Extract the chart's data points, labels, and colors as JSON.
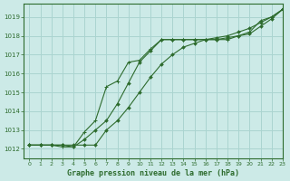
{
  "title": "Graphe pression niveau de la mer (hPa)",
  "bg_color": "#cceae7",
  "grid_color": "#aad4d0",
  "line_color": "#2d6b2d",
  "xlim": [
    -0.5,
    23
  ],
  "ylim": [
    1011.5,
    1019.7
  ],
  "yticks": [
    1012,
    1013,
    1014,
    1015,
    1016,
    1017,
    1018,
    1019
  ],
  "xticks": [
    0,
    1,
    2,
    3,
    4,
    5,
    6,
    7,
    8,
    9,
    10,
    11,
    12,
    13,
    14,
    15,
    16,
    17,
    18,
    19,
    20,
    21,
    22,
    23
  ],
  "series1_x": [
    0,
    1,
    2,
    3,
    4,
    5,
    6,
    7,
    8,
    9,
    10,
    11,
    12,
    13,
    14,
    15,
    16,
    17,
    18,
    19,
    20,
    21,
    22,
    23
  ],
  "series1_y": [
    1012.2,
    1012.2,
    1012.2,
    1012.2,
    1012.2,
    1012.2,
    1012.2,
    1013.0,
    1013.5,
    1014.2,
    1015.0,
    1015.8,
    1016.5,
    1017.0,
    1017.4,
    1017.6,
    1017.8,
    1017.9,
    1018.0,
    1018.2,
    1018.4,
    1018.7,
    1019.0,
    1019.4
  ],
  "series2_x": [
    0,
    1,
    2,
    3,
    4,
    5,
    6,
    7,
    8,
    9,
    10,
    11,
    12,
    13,
    14,
    15,
    16,
    17,
    18,
    19,
    20,
    21,
    22,
    23
  ],
  "series2_y": [
    1012.2,
    1012.2,
    1012.2,
    1012.2,
    1012.1,
    1012.5,
    1013.0,
    1013.5,
    1014.4,
    1015.5,
    1016.6,
    1017.2,
    1017.8,
    1017.8,
    1017.8,
    1017.8,
    1017.8,
    1017.8,
    1017.9,
    1018.0,
    1018.1,
    1018.5,
    1018.9,
    1019.4
  ],
  "series3_x": [
    0,
    1,
    2,
    3,
    4,
    5,
    6,
    7,
    8,
    9,
    10,
    11,
    12,
    13,
    14,
    15,
    16,
    17,
    18,
    19,
    20,
    21,
    22,
    23
  ],
  "series3_y": [
    1012.2,
    1012.2,
    1012.2,
    1012.1,
    1012.1,
    1012.9,
    1013.5,
    1015.3,
    1015.6,
    1016.6,
    1016.7,
    1017.3,
    1017.8,
    1017.8,
    1017.8,
    1017.8,
    1017.8,
    1017.8,
    1017.8,
    1018.0,
    1018.2,
    1018.8,
    1019.0,
    1019.4
  ]
}
